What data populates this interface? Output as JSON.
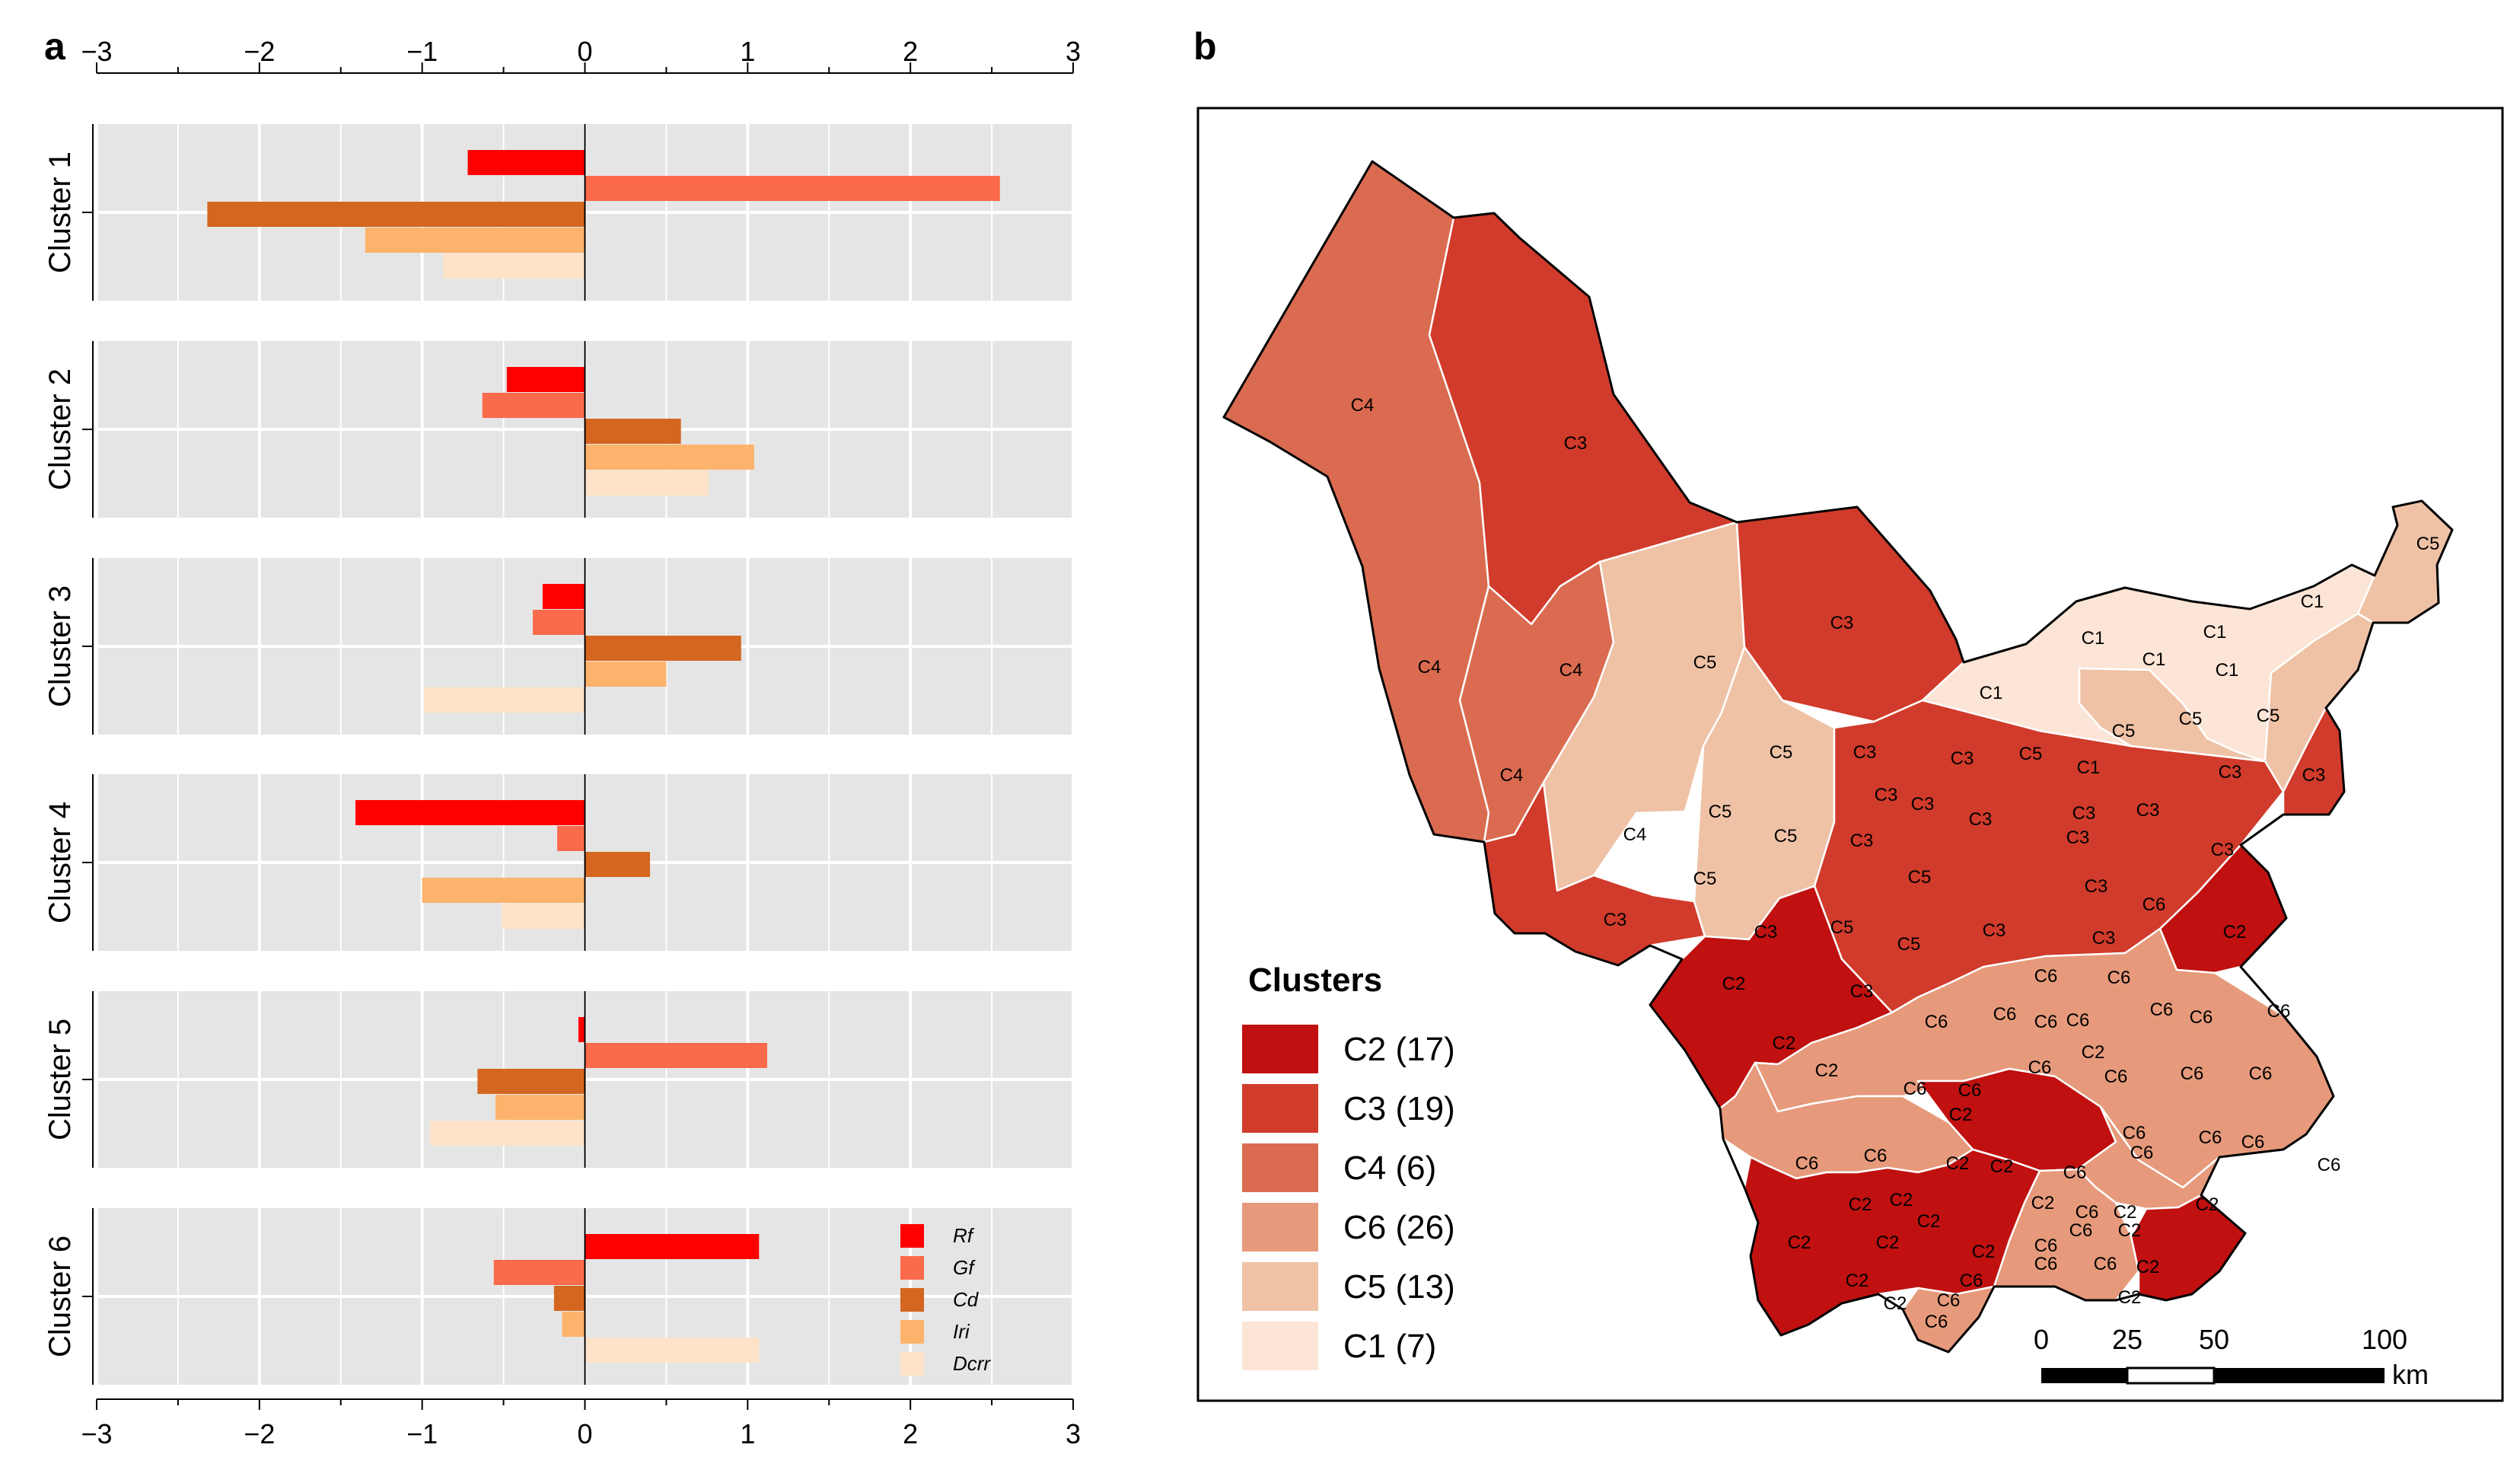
{
  "panels": {
    "a_label": "a",
    "b_label": "b"
  },
  "chart_data": {
    "type": "bar",
    "orientation": "horizontal",
    "xlim": [
      -3,
      3
    ],
    "xticks": [
      -3,
      -2,
      -1,
      0,
      1,
      2,
      3
    ],
    "xtick_labels": [
      "−3",
      "−2",
      "−1",
      "0",
      "1",
      "2",
      "3"
    ],
    "grid": true,
    "legend_position": "bottom-right",
    "variables": [
      "Rf",
      "Gf",
      "Cd",
      "Iri",
      "Dcrr"
    ],
    "series_colors": {
      "Rf": "#ff0000",
      "Gf": "#fb6a4a",
      "Cd": "#d4661f",
      "Iri": "#fdb36b",
      "Dcrr": "#fee3c8"
    },
    "clusters": [
      {
        "name": "Cluster 1",
        "values": {
          "Rf": -0.72,
          "Gf": 2.55,
          "Cd": -2.32,
          "Iri": -1.35,
          "Dcrr": -0.87
        }
      },
      {
        "name": "Cluster 2",
        "values": {
          "Rf": -0.48,
          "Gf": -0.63,
          "Cd": 0.59,
          "Iri": 1.04,
          "Dcrr": 0.76
        }
      },
      {
        "name": "Cluster 3",
        "values": {
          "Rf": -0.26,
          "Gf": -0.32,
          "Cd": 0.96,
          "Iri": 0.5,
          "Dcrr": -0.99
        }
      },
      {
        "name": "Cluster 4",
        "values": {
          "Rf": -1.41,
          "Gf": -0.17,
          "Cd": 0.4,
          "Iri": -1.0,
          "Dcrr": -0.51
        }
      },
      {
        "name": "Cluster 5",
        "values": {
          "Rf": -0.04,
          "Gf": 1.12,
          "Cd": -0.66,
          "Iri": -0.55,
          "Dcrr": -0.95
        }
      },
      {
        "name": "Cluster 6",
        "values": {
          "Rf": 1.07,
          "Gf": -0.56,
          "Cd": -0.19,
          "Iri": -0.14,
          "Dcrr": 1.07
        }
      }
    ]
  },
  "map": {
    "legend_title": "Clusters",
    "legend_items": [
      {
        "label": "C2 (17)",
        "color": "#c01010"
      },
      {
        "label": "C3 (19)",
        "color": "#d13b2b"
      },
      {
        "label": "C4 (6)",
        "color": "#da6b50"
      },
      {
        "label": "C6 (26)",
        "color": "#e69a7b"
      },
      {
        "label": "C5 (13)",
        "color": "#efc2a6"
      },
      {
        "label": "C1 (7)",
        "color": "#fce5d6"
      }
    ],
    "cluster_colors": {
      "C1": "#fce5d6",
      "C2": "#c01010",
      "C3": "#d13b2b",
      "C4": "#da6b50",
      "C5": "#efc2a6",
      "C6": "#e69a7b"
    },
    "scale_labels": [
      "0",
      "25",
      "50",
      "100"
    ],
    "scale_unit": "km"
  }
}
